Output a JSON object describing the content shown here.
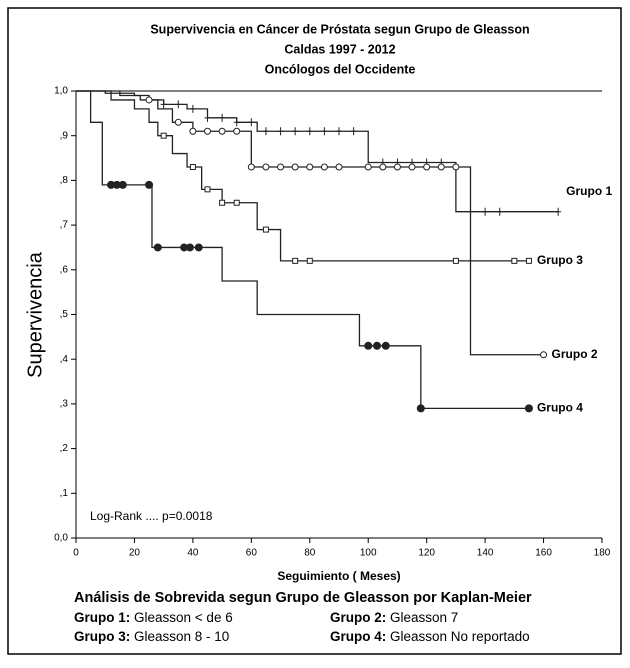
{
  "chart_data": {
    "type": "step",
    "title": "Supervivencia  en Cáncer de Próstata segun Grupo de Gleasson",
    "subtitle": [
      "Caldas  1997 - 2012",
      "Oncólogos del Occidente"
    ],
    "xlabel": "Seguimiento ( Meses)",
    "ylabel": "Supervivencia",
    "xlim": [
      0,
      180
    ],
    "xticks": [
      0,
      20,
      40,
      60,
      80,
      100,
      120,
      140,
      160,
      180
    ],
    "ylim": [
      0,
      1
    ],
    "yticks": [
      {
        "value": 0,
        "label": "0,0"
      },
      {
        "value": 0.1,
        "label": ",1"
      },
      {
        "value": 0.2,
        "label": ",2"
      },
      {
        "value": 0.3,
        "label": ",3"
      },
      {
        "value": 0.4,
        "label": ",4"
      },
      {
        "value": 0.5,
        "label": ",5"
      },
      {
        "value": 0.6,
        "label": ",6"
      },
      {
        "value": 0.7,
        "label": ",7"
      },
      {
        "value": 0.8,
        "label": ",8"
      },
      {
        "value": 0.9,
        "label": ",9"
      },
      {
        "value": 1,
        "label": "1,0"
      }
    ],
    "annotation": "Log-Rank .... p=0.0018",
    "series": [
      {
        "name": "Grupo 1",
        "color": "#222222",
        "marker": "plus",
        "x": [
          0,
          10,
          20,
          25,
          30,
          38,
          45,
          55,
          62,
          100,
          130,
          165
        ],
        "values": [
          1,
          0.995,
          0.99,
          0.98,
          0.97,
          0.96,
          0.94,
          0.93,
          0.91,
          0.84,
          0.73,
          0.73
        ],
        "censored": [
          30,
          35,
          40,
          45,
          50,
          55,
          60,
          65,
          70,
          75,
          80,
          85,
          90,
          95,
          105,
          110,
          115,
          120,
          125,
          135,
          140,
          145,
          165
        ]
      },
      {
        "name": "Grupo 2",
        "color": "#222222",
        "marker": "circle",
        "x": [
          0,
          15,
          22,
          28,
          33,
          40,
          60,
          100,
          135,
          160
        ],
        "values": [
          1,
          0.99,
          0.98,
          0.96,
          0.93,
          0.91,
          0.83,
          0.83,
          0.41,
          0.41
        ],
        "censored": [
          25,
          35,
          40,
          45,
          50,
          55,
          60,
          65,
          70,
          75,
          80,
          85,
          90,
          100,
          105,
          110,
          115,
          120,
          125,
          130,
          160
        ]
      },
      {
        "name": "Grupo 3",
        "color": "#222222",
        "marker": "square",
        "x": [
          0,
          12,
          20,
          25,
          28,
          33,
          38,
          43,
          50,
          62,
          70,
          155
        ],
        "values": [
          1,
          0.98,
          0.96,
          0.93,
          0.9,
          0.86,
          0.83,
          0.78,
          0.75,
          0.69,
          0.62,
          0.62
        ],
        "censored": [
          30,
          40,
          45,
          50,
          55,
          65,
          75,
          80,
          130,
          150,
          155
        ]
      },
      {
        "name": "Grupo 4",
        "color": "#222222",
        "marker": "dot",
        "x": [
          0,
          5,
          9,
          26,
          50,
          62,
          97,
          118,
          155
        ],
        "values": [
          1,
          0.93,
          0.79,
          0.65,
          0.575,
          0.5,
          0.43,
          0.29,
          0.29
        ],
        "censored": [
          12,
          14,
          16,
          25,
          28,
          37,
          39,
          42,
          100,
          103,
          106,
          118,
          155
        ]
      }
    ],
    "caption": {
      "title": "Análisis de Sobrevida segun Grupo de Gleasson por Kaplan-Meier",
      "items": [
        {
          "label": "Grupo 1:",
          "text": "Gleasson < de 6"
        },
        {
          "label": "Grupo 2:",
          "text": "Gleasson 7"
        },
        {
          "label": "Grupo 3:",
          "text": "Gleasson 8 - 10"
        },
        {
          "label": "Grupo 4:",
          "text": "Gleasson No reportado"
        }
      ]
    }
  }
}
